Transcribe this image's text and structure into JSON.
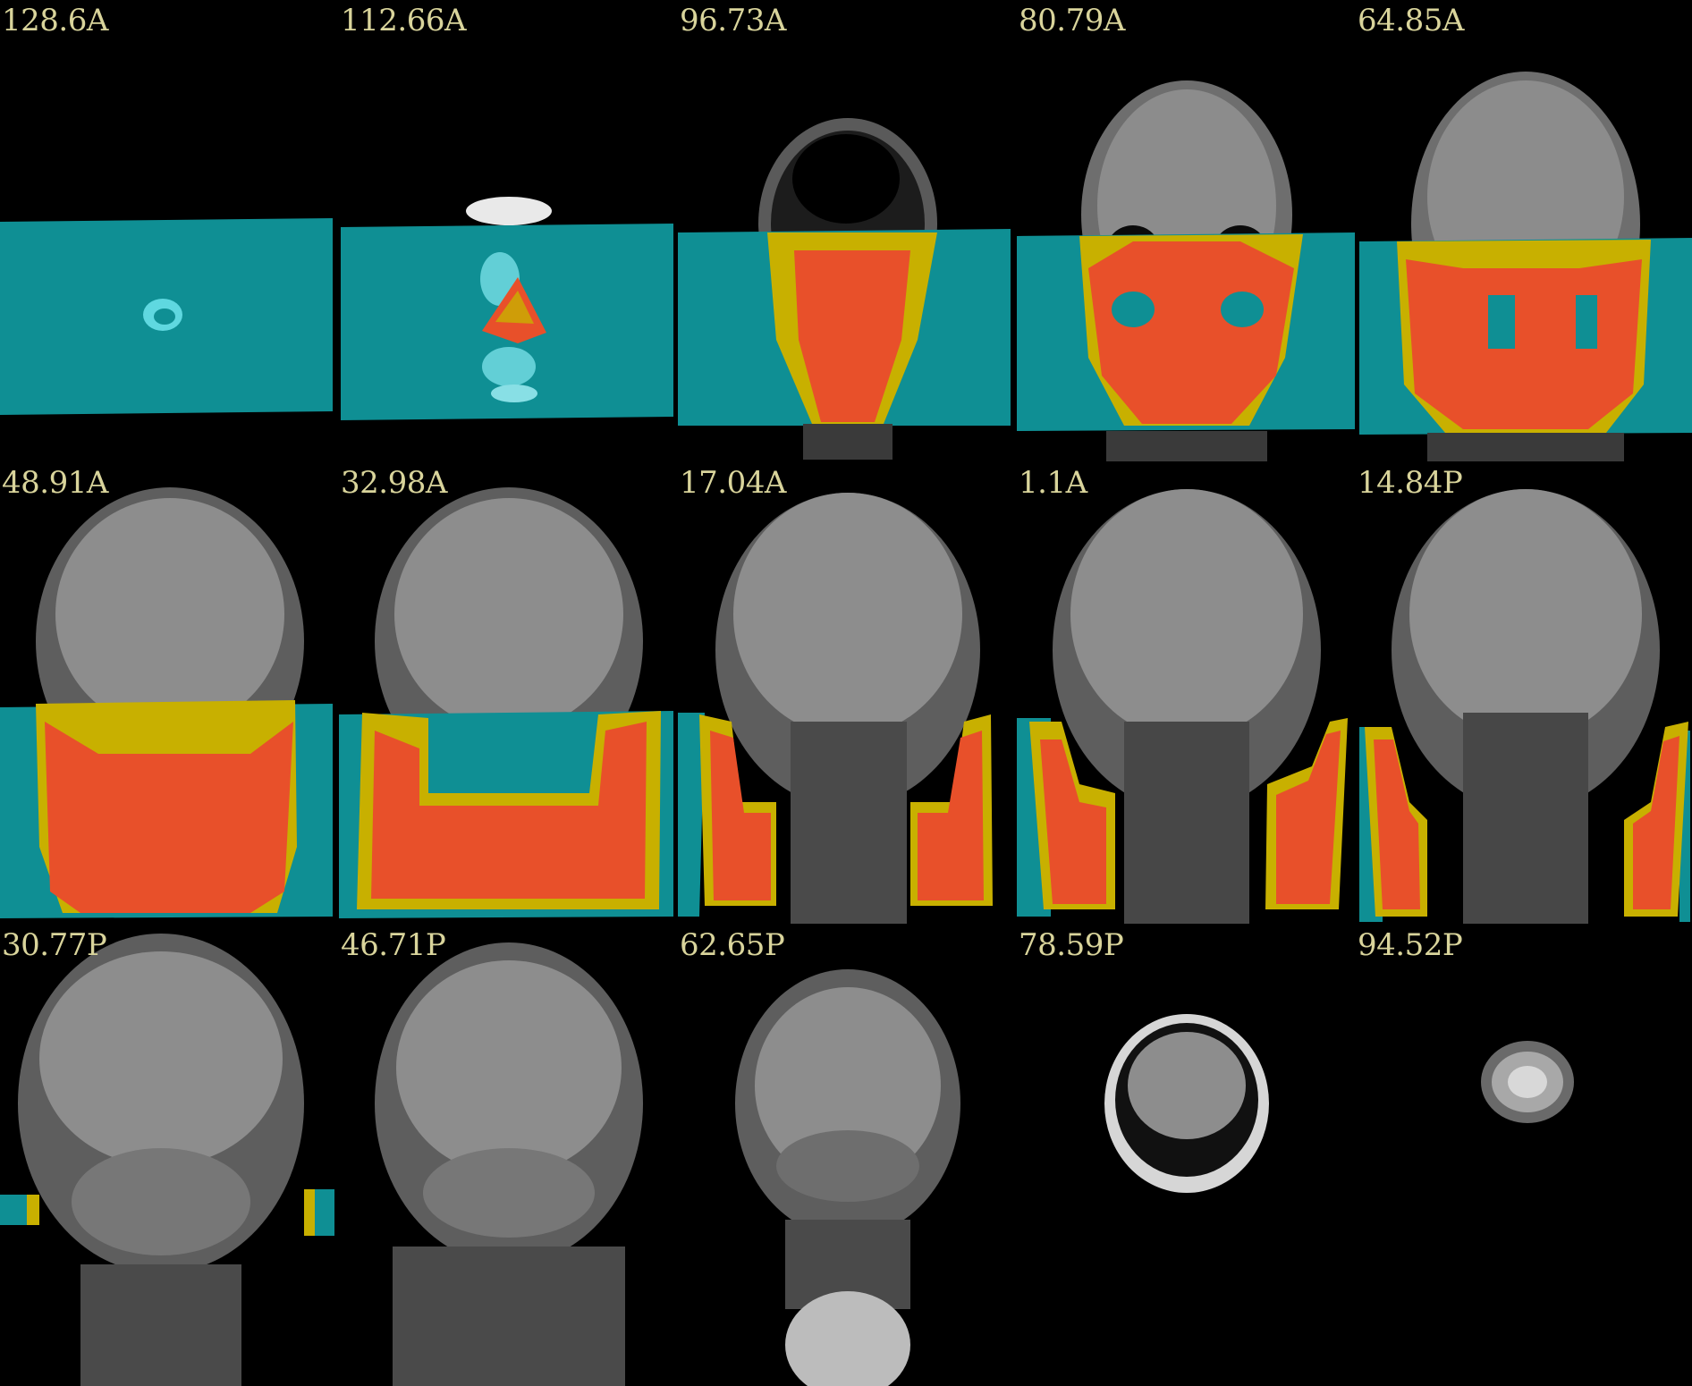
{
  "colors": {
    "background": "#000000",
    "label_text": "#d9d49b",
    "mask_cyan": "#0f8f94",
    "overlay_red": "#e8502a",
    "overlay_yellow": "#c8b000",
    "tissue_gray": "#8a8a8a"
  },
  "slices": [
    {
      "label": "128.6A"
    },
    {
      "label": "112.66A"
    },
    {
      "label": "96.73A"
    },
    {
      "label": "80.79A"
    },
    {
      "label": "64.85A"
    },
    {
      "label": "48.91A"
    },
    {
      "label": "32.98A"
    },
    {
      "label": "17.04A"
    },
    {
      "label": "1.1A"
    },
    {
      "label": "14.84P"
    },
    {
      "label": "30.77P"
    },
    {
      "label": "46.71P"
    },
    {
      "label": "62.65P"
    },
    {
      "label": "78.59P"
    },
    {
      "label": "94.52P"
    }
  ]
}
